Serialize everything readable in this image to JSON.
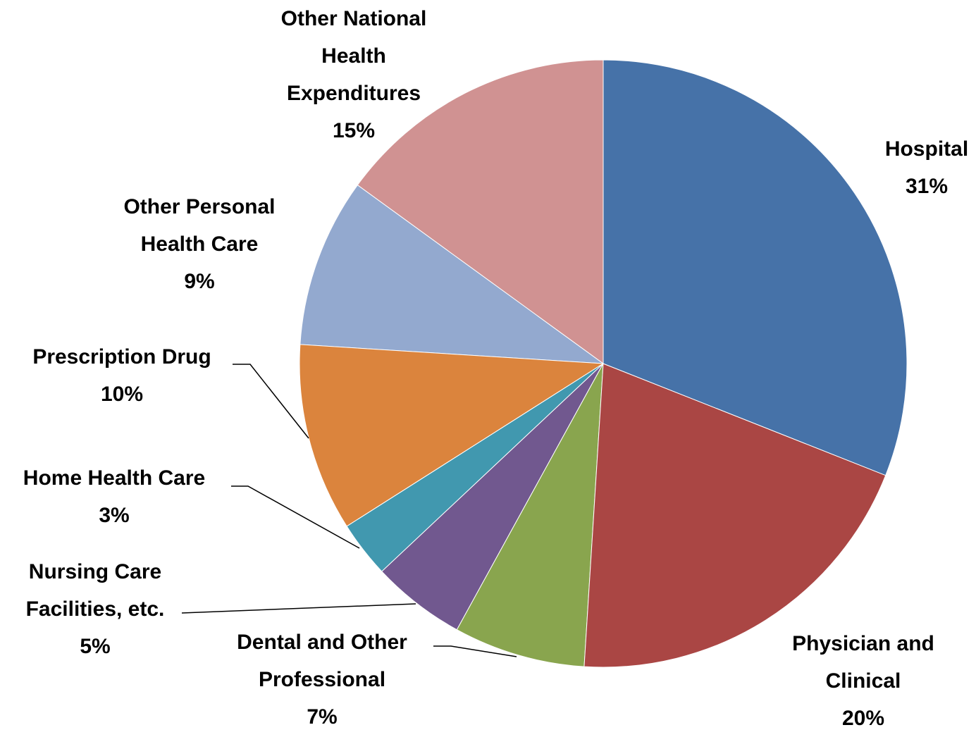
{
  "chart_data": {
    "type": "pie",
    "categories": [
      "Hospital",
      "Physician and Clinical",
      "Dental and Other Professional",
      "Nursing Care Facilities, etc.",
      "Home Health Care",
      "Prescription Drug",
      "Other Personal Health Care",
      "Other National Health Expenditures"
    ],
    "values": [
      31,
      20,
      7,
      5,
      3,
      10,
      9,
      15
    ],
    "value_labels": [
      "31%",
      "20%",
      "7%",
      "5%",
      "3%",
      "10%",
      "9%",
      "15%"
    ],
    "colors": [
      "#4672a8",
      "#aa4644",
      "#89a54e",
      "#71588f",
      "#4198af",
      "#db843d",
      "#93a9cf",
      "#d09292"
    ]
  }
}
